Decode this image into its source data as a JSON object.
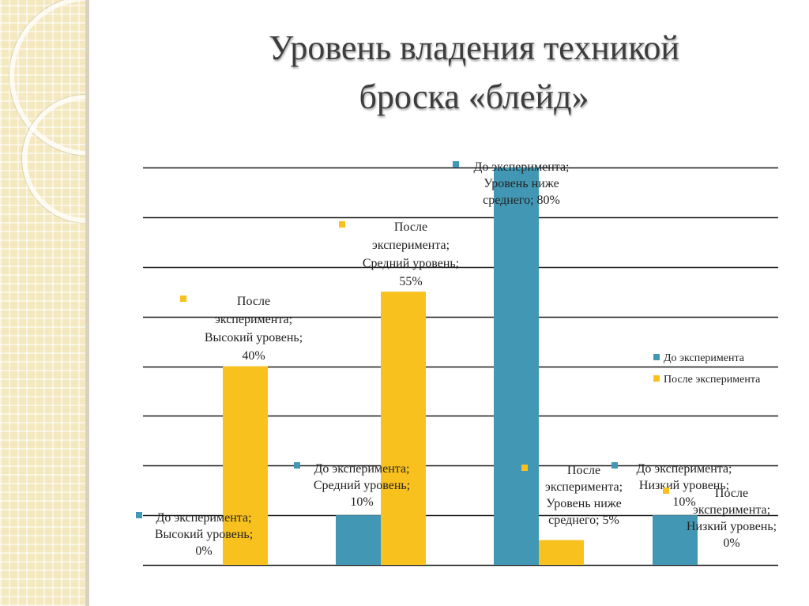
{
  "slide": {
    "title_line1": "Уровень владения техникой",
    "title_line2": "броска «блейд»"
  },
  "chart_data": {
    "type": "bar",
    "categories": [
      "Высокий уровень",
      "Средний уровень",
      "Уровень ниже среднего",
      "Низкий уровень"
    ],
    "series": [
      {
        "name": "До эксперимента",
        "color": "#4298b4",
        "values": [
          0,
          10,
          80,
          10
        ]
      },
      {
        "name": "После эксперимента",
        "color": "#f8c11e",
        "values": [
          40,
          55,
          5,
          0
        ]
      }
    ],
    "ylim": [
      0,
      80
    ],
    "gridlines": [
      0,
      10,
      20,
      30,
      40,
      50,
      60,
      70,
      80
    ],
    "grid": true,
    "legend": {
      "position": "right",
      "items": [
        {
          "label": "До эксперимента",
          "color": "#4298b4"
        },
        {
          "label": "После эксперимента",
          "color": "#f8c11e"
        }
      ]
    },
    "data_labels": [
      {
        "id": "b0-s0",
        "series": 0,
        "cat": 0,
        "lines": [
          "До эксперимента;",
          "Высокий уровень;",
          "0%"
        ]
      },
      {
        "id": "b0-s1",
        "series": 1,
        "cat": 0,
        "lines": [
          "После",
          "эксперимента;",
          "Высокий уровень;",
          "40%"
        ]
      },
      {
        "id": "b1-s0",
        "series": 0,
        "cat": 1,
        "lines": [
          "До эксперимента;",
          "Средний уровень;",
          "10%"
        ]
      },
      {
        "id": "b1-s1",
        "series": 1,
        "cat": 1,
        "lines": [
          "После",
          "эксперимента;",
          "Средний уровень;",
          "55%"
        ]
      },
      {
        "id": "b2-s0",
        "series": 0,
        "cat": 2,
        "lines": [
          "До эксперимента;",
          "Уровень ниже",
          "среднего; 80%"
        ]
      },
      {
        "id": "b2-s1",
        "series": 1,
        "cat": 2,
        "lines": [
          "После",
          "эксперимента;",
          "Уровень ниже",
          "среднего; 5%"
        ]
      },
      {
        "id": "b3-s0",
        "series": 0,
        "cat": 3,
        "lines": [
          "До эксперимента;",
          "Низкий уровень;",
          "10%"
        ]
      },
      {
        "id": "b3-s1",
        "series": 1,
        "cat": 3,
        "lines": [
          "После",
          "эксперимента;",
          "Низкий уровень;",
          "0%"
        ]
      }
    ]
  }
}
